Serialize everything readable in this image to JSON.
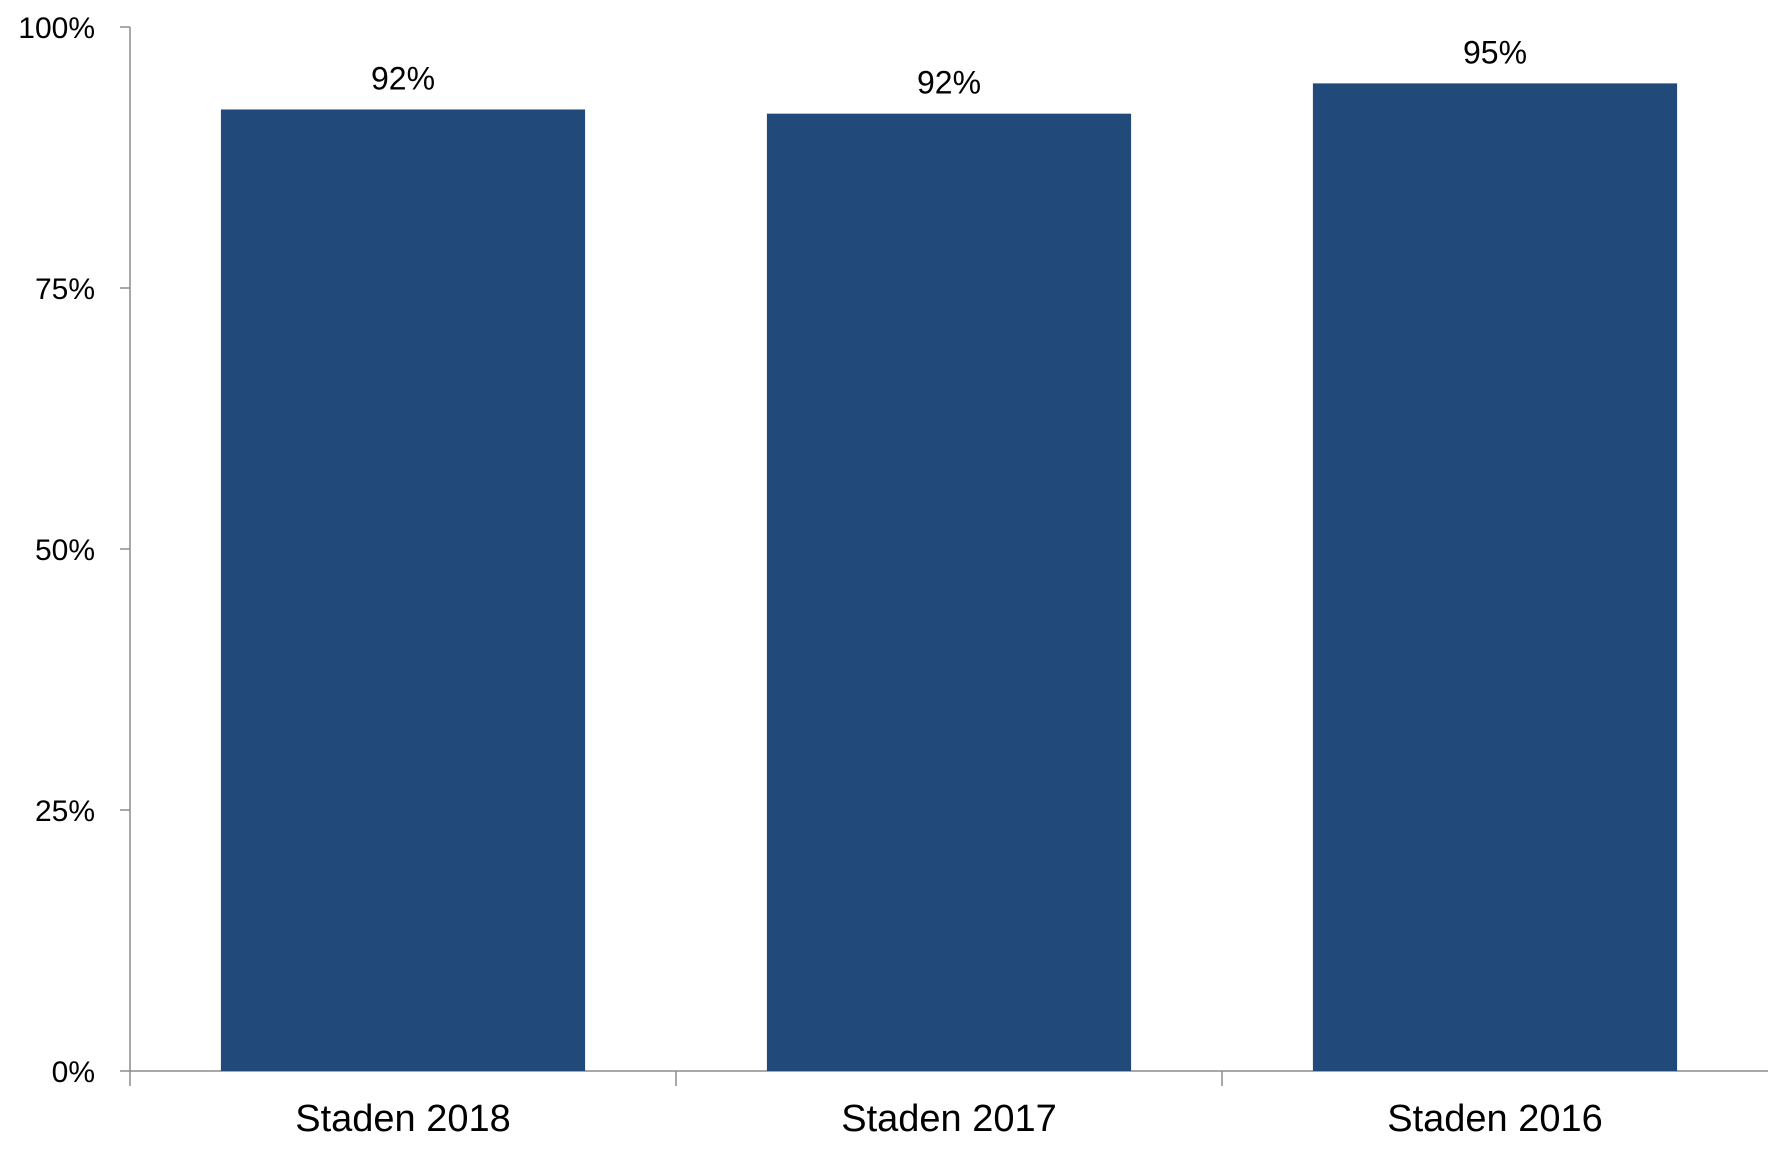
{
  "chart_data": {
    "type": "bar",
    "categories": [
      "Staden 2018",
      "Staden 2017",
      "Staden 2016"
    ],
    "values": [
      92,
      92,
      95
    ],
    "bar_value_positions": [
      92.1,
      91.7,
      94.6
    ],
    "data_labels": [
      "92%",
      "92%",
      "95%"
    ],
    "title": "",
    "xlabel": "",
    "ylabel": "",
    "ylim": [
      0,
      100
    ],
    "yticks": [
      0,
      25,
      50,
      75,
      100
    ],
    "ytick_labels": [
      "0%",
      "25%",
      "50%",
      "75%",
      "100%"
    ],
    "grid": false,
    "legend": "none",
    "colors": {
      "bar": "#214a7b",
      "axis": "#8c8c8c",
      "text": "#000000"
    }
  }
}
